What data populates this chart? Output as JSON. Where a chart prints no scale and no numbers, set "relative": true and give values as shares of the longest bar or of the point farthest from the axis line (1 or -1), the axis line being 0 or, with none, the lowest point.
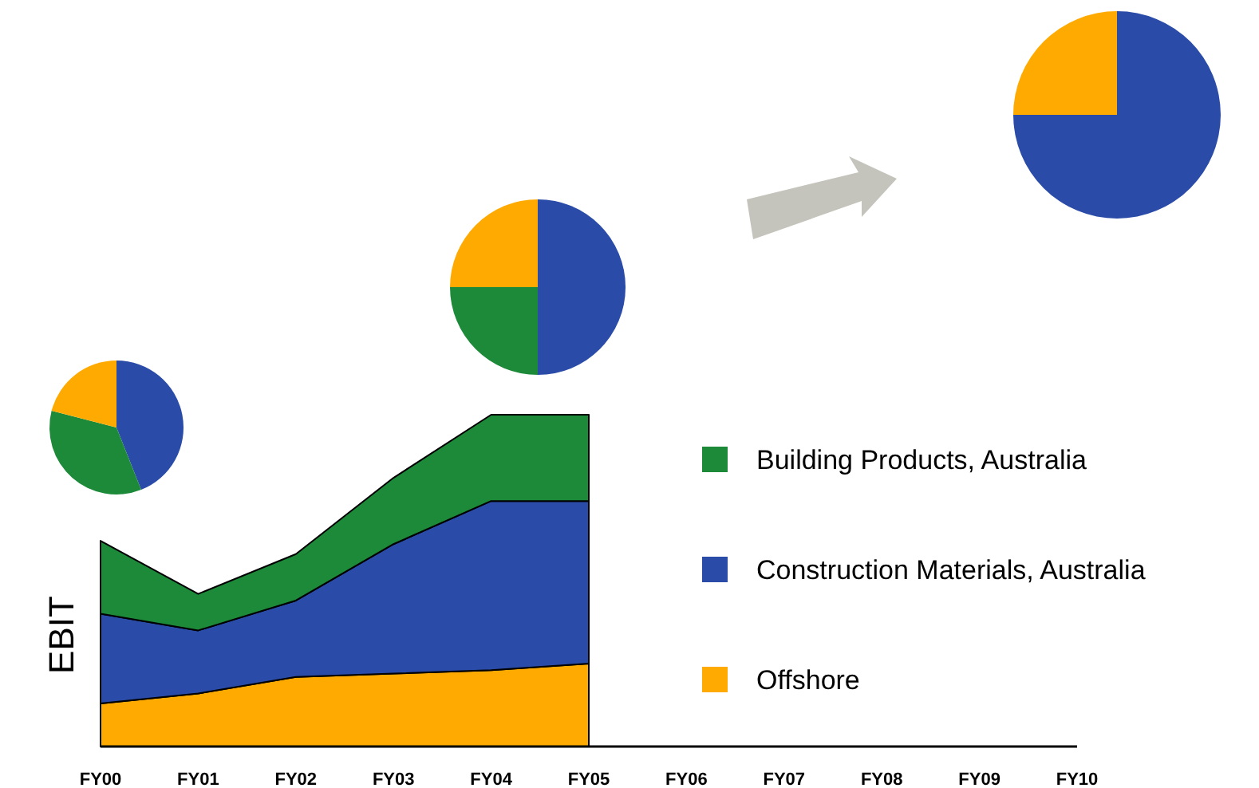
{
  "chart_data": [
    {
      "type": "area",
      "stacked": true,
      "relative": true,
      "ylabel": "EBIT",
      "legend": "right",
      "categories": [
        "FY00",
        "FY01",
        "FY02",
        "FY03",
        "FY04",
        "FY05",
        "FY06",
        "FY07",
        "FY08",
        "FY09",
        "FY10"
      ],
      "series": [
        {
          "name": "Offshore",
          "color": "#ffaa00",
          "values": [
            0.13,
            0.16,
            0.21,
            0.22,
            0.23,
            0.25,
            null,
            null,
            null,
            null,
            null
          ]
        },
        {
          "name": "Construction Materials, Australia",
          "color": "#2a4ca8",
          "values": [
            0.27,
            0.19,
            0.23,
            0.39,
            0.51,
            0.49,
            null,
            null,
            null,
            null,
            null
          ]
        },
        {
          "name": "Building Products, Australia",
          "color": "#1d8a3a",
          "values": [
            0.22,
            0.11,
            0.14,
            0.2,
            0.26,
            0.26,
            null,
            null,
            null,
            null,
            null
          ]
        }
      ]
    },
    {
      "type": "pie",
      "categories": [
        null,
        null,
        null
      ],
      "values": [
        44,
        35,
        21
      ],
      "colors": [
        "#2a4ca8",
        "#1d8a3a",
        "#ffaa00"
      ]
    },
    {
      "type": "pie",
      "categories": [
        null,
        null,
        null
      ],
      "values": [
        50,
        25,
        25
      ],
      "colors": [
        "#2a4ca8",
        "#1d8a3a",
        "#ffaa00"
      ]
    },
    {
      "type": "pie",
      "categories": [
        null,
        null
      ],
      "values": [
        75,
        25
      ],
      "colors": [
        "#2a4ca8",
        "#ffaa00"
      ]
    }
  ]
}
